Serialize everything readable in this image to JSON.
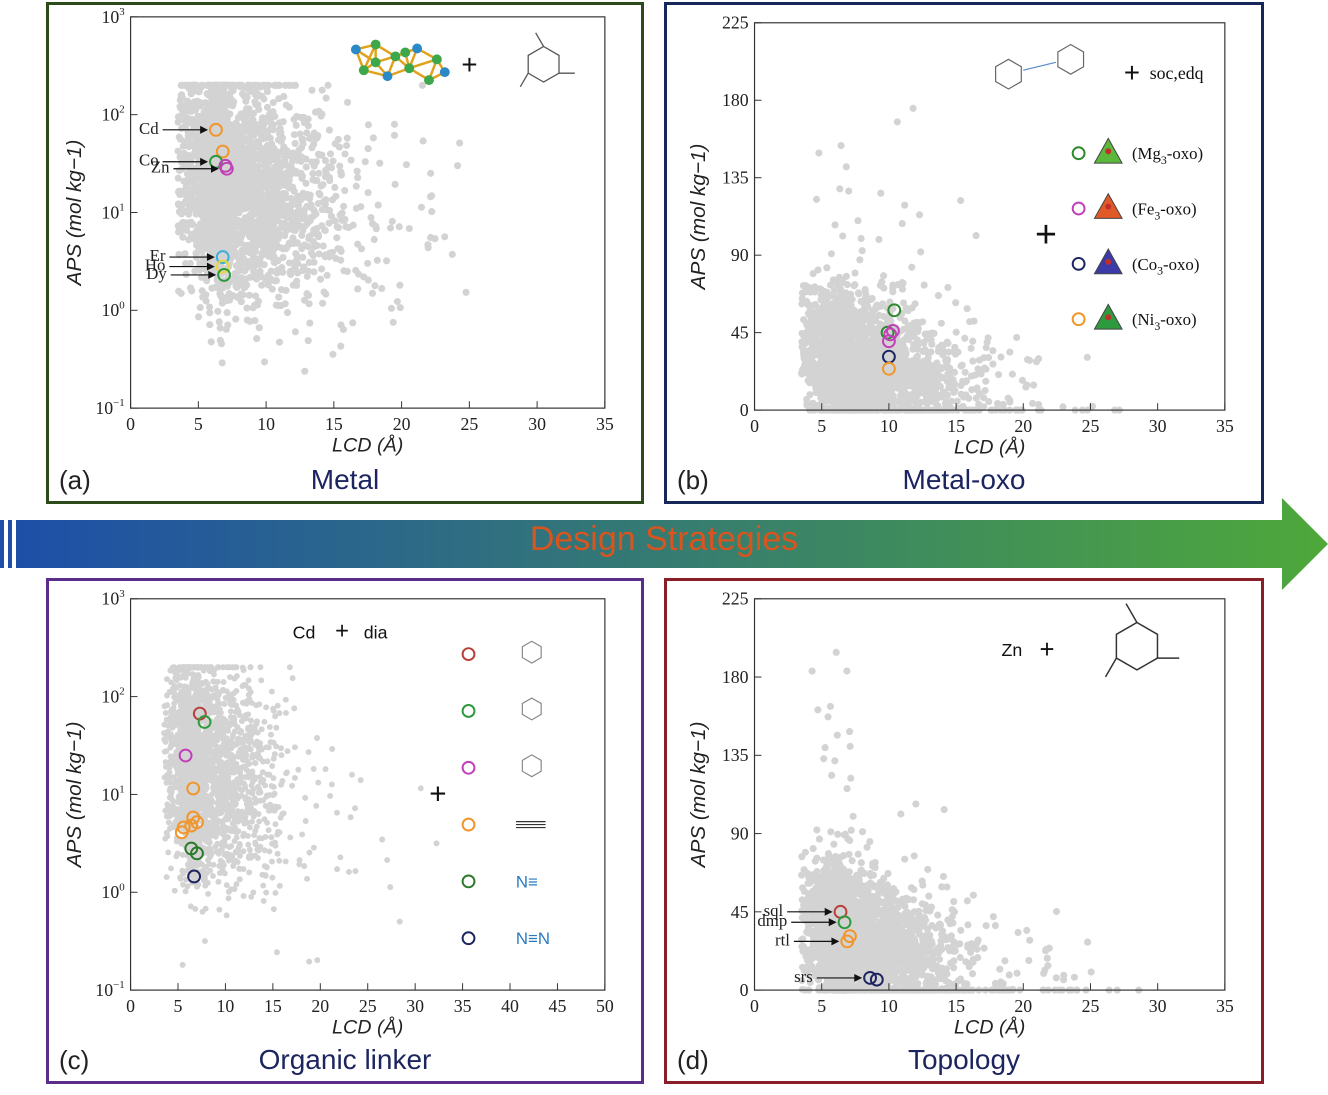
{
  "arrow": {
    "label": "Design Strategies",
    "color_start": "#1e4fa8",
    "color_end": "#4ea83a",
    "text_color": "#d9541e"
  },
  "colors": {
    "points": "#d3d3d3",
    "text": "#222222",
    "title": "#1d2560"
  },
  "panels": [
    {
      "id": "a",
      "corner": "(a)",
      "title": "Metal",
      "border": "#2d4a1a",
      "overlay": {
        "plus": "+"
      }
    },
    {
      "id": "b",
      "corner": "(b)",
      "title": "Metal-oxo",
      "border": "#16285a",
      "overlay": {
        "topology": "soc,edq",
        "plus": "+",
        "legend": [
          {
            "label": "(Mg3-oxo)",
            "color": "#2b8a2b",
            "fill": "#5cb83a"
          },
          {
            "label": "(Fe3-oxo)",
            "color": "#c040b8",
            "fill": "#e05a28"
          },
          {
            "label": "(Co3-oxo)",
            "color": "#1d2560",
            "fill": "#3b3aa8"
          },
          {
            "label": "(Ni3-oxo)",
            "color": "#f0962a",
            "fill": "#2e9a3e"
          }
        ]
      }
    },
    {
      "id": "c",
      "corner": "(c)",
      "title": "Organic linker",
      "border": "#5b2d8a",
      "overlay": {
        "metal": "Cd",
        "topology": "dia",
        "plus": "+",
        "linker_colors": [
          "#b8403a",
          "#2e9a3e",
          "#c040b8",
          "#f0962a",
          "#2b7a2b",
          "#1d2560"
        ],
        "linker_texts": [
          "",
          "",
          "",
          "",
          "N≡",
          "N≡N"
        ]
      }
    },
    {
      "id": "d",
      "corner": "(d)",
      "title": "Topology",
      "border": "#8a1e26",
      "overlay": {
        "metal": "Zn",
        "plus": "+"
      }
    }
  ],
  "chart_data": [
    {
      "type": "scatter",
      "panel": "a",
      "yscale": "log",
      "xlabel": "LCD (Å)",
      "ylabel": "APS (mol kg−1)",
      "xlim": [
        0,
        35
      ],
      "ylim": [
        0.1,
        1000
      ],
      "xticks": [
        "0",
        "5",
        "10",
        "15",
        "20",
        "25",
        "30",
        "35"
      ],
      "yticks": [
        "10−1",
        "100",
        "101",
        "102",
        "103"
      ],
      "highlights": [
        {
          "label": "Cd",
          "x": 6.3,
          "y": 70,
          "color": "#f0962a"
        },
        {
          "label": "",
          "x": 6.8,
          "y": 42,
          "color": "#f0962a"
        },
        {
          "label": "Co",
          "x": 6.3,
          "y": 33,
          "color": "#2e9a3e"
        },
        {
          "label": "Zn",
          "x": 7.1,
          "y": 28,
          "color": "#c040b8"
        },
        {
          "label": "",
          "x": 7.0,
          "y": 30,
          "color": "#c040b8"
        },
        {
          "label": "Er",
          "x": 6.8,
          "y": 3.5,
          "color": "#3cb0d8"
        },
        {
          "label": "Ho",
          "x": 6.8,
          "y": 2.8,
          "color": "#e8d83a"
        },
        {
          "label": "Dy",
          "x": 6.9,
          "y": 2.3,
          "color": "#2e9a3e"
        }
      ]
    },
    {
      "type": "scatter",
      "panel": "b",
      "yscale": "linear",
      "xlabel": "LCD (Å)",
      "ylabel": "APS (mol kg−1)",
      "xlim": [
        0,
        35
      ],
      "ylim": [
        0,
        225
      ],
      "xticks": [
        "0",
        "5",
        "10",
        "15",
        "20",
        "25",
        "30",
        "35"
      ],
      "yticks": [
        "0",
        "45",
        "90",
        "135",
        "180",
        "225"
      ],
      "highlights": [
        {
          "label": "",
          "x": 10.4,
          "y": 58,
          "color": "#2b8a2b"
        },
        {
          "label": "",
          "x": 9.9,
          "y": 45,
          "color": "#2b8a2b"
        },
        {
          "label": "",
          "x": 10.3,
          "y": 46,
          "color": "#c040b8"
        },
        {
          "label": "",
          "x": 10.1,
          "y": 44,
          "color": "#c040b8"
        },
        {
          "label": "",
          "x": 10.0,
          "y": 40,
          "color": "#c040b8"
        },
        {
          "label": "",
          "x": 10.0,
          "y": 31,
          "color": "#1d2560"
        },
        {
          "label": "",
          "x": 10.0,
          "y": 24,
          "color": "#f0962a"
        }
      ]
    },
    {
      "type": "scatter",
      "panel": "c",
      "yscale": "log",
      "xlabel": "LCD (Å)",
      "ylabel": "APS (mol kg−1)",
      "xlim": [
        0,
        50
      ],
      "ylim": [
        0.1,
        1000
      ],
      "xticks": [
        "0",
        "5",
        "10",
        "15",
        "20",
        "25",
        "30",
        "35",
        "40",
        "45",
        "50"
      ],
      "yticks": [
        "10−1",
        "100",
        "101",
        "102",
        "103"
      ],
      "highlights": [
        {
          "label": "",
          "x": 7.3,
          "y": 67,
          "color": "#b8403a"
        },
        {
          "label": "",
          "x": 7.8,
          "y": 55,
          "color": "#2e9a3e"
        },
        {
          "label": "",
          "x": 5.8,
          "y": 25,
          "color": "#c040b8"
        },
        {
          "label": "",
          "x": 6.6,
          "y": 11.5,
          "color": "#f0962a"
        },
        {
          "label": "",
          "x": 6.6,
          "y": 5.8,
          "color": "#f0962a"
        },
        {
          "label": "",
          "x": 7.0,
          "y": 5.2,
          "color": "#f0962a"
        },
        {
          "label": "",
          "x": 6.4,
          "y": 4.8,
          "color": "#f0962a"
        },
        {
          "label": "",
          "x": 5.6,
          "y": 4.6,
          "color": "#f0962a"
        },
        {
          "label": "",
          "x": 5.4,
          "y": 4.1,
          "color": "#f0962a"
        },
        {
          "label": "",
          "x": 6.4,
          "y": 2.8,
          "color": "#2b7a2b"
        },
        {
          "label": "",
          "x": 7.0,
          "y": 2.5,
          "color": "#2b7a2b"
        },
        {
          "label": "",
          "x": 6.7,
          "y": 1.45,
          "color": "#1d2560"
        }
      ]
    },
    {
      "type": "scatter",
      "panel": "d",
      "yscale": "linear",
      "xlabel": "LCD (Å)",
      "ylabel": "APS (mol kg−1)",
      "xlim": [
        0,
        35
      ],
      "ylim": [
        0,
        225
      ],
      "xticks": [
        "0",
        "5",
        "10",
        "15",
        "20",
        "25",
        "30",
        "35"
      ],
      "yticks": [
        "0",
        "45",
        "90",
        "135",
        "180",
        "225"
      ],
      "highlights": [
        {
          "label": "sql",
          "x": 6.4,
          "y": 45,
          "color": "#b8403a"
        },
        {
          "label": "dmp",
          "x": 6.7,
          "y": 39,
          "color": "#2e9a3e"
        },
        {
          "label": "rtl",
          "x": 6.9,
          "y": 28,
          "color": "#f0962a"
        },
        {
          "label": "",
          "x": 7.1,
          "y": 31,
          "color": "#f0962a"
        },
        {
          "label": "srs",
          "x": 8.6,
          "y": 7,
          "color": "#1d2560"
        },
        {
          "label": "",
          "x": 9.1,
          "y": 6,
          "color": "#1d2560"
        }
      ]
    }
  ]
}
